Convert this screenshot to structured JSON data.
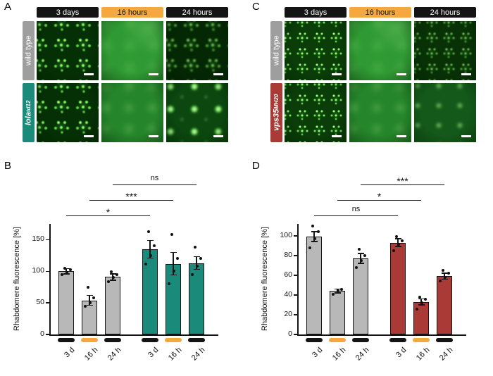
{
  "figure": {
    "panel_a": {
      "letter": "A",
      "columns": [
        "3 days",
        "16 hours",
        "24 hours"
      ],
      "rows": [
        {
          "name": "wild type",
          "sup": ""
        },
        {
          "name": "lola",
          "sup": "td12"
        }
      ]
    },
    "panel_c": {
      "letter": "C",
      "columns": [
        "3 days",
        "16 hours",
        "24 hours"
      ],
      "rows": [
        {
          "name": "wild type",
          "sup": ""
        },
        {
          "name": "vps35",
          "sup": "MH20"
        }
      ]
    },
    "panel_b_letter": "B",
    "panel_d_letter": "D"
  },
  "colors": {
    "black_bar": "#141414",
    "orange_bar": "#f5a83e",
    "gray_label": "#9e9e9e",
    "gray_bar": "#b8b8b8",
    "teal": "#1a8a7a",
    "red": "#a93a35"
  },
  "chart_data": [
    {
      "id": "B",
      "type": "bar",
      "title": "",
      "ylabel": "Rhabdomere fluorescence [%]",
      "categories": [
        "3 d",
        "16 h",
        "24 h",
        "3 d",
        "16 h",
        "24 h"
      ],
      "values": [
        100,
        54,
        91,
        135,
        112,
        113
      ],
      "errors": [
        4,
        8,
        5,
        14,
        18,
        10
      ],
      "points": [
        [
          95,
          98,
          102,
          105
        ],
        [
          45,
          50,
          58,
          75
        ],
        [
          84,
          90,
          95,
          99
        ],
        [
          112,
          125,
          140,
          163
        ],
        [
          80,
          100,
          120,
          158
        ],
        [
          95,
          108,
          120,
          138
        ]
      ],
      "bar_colors": [
        "gray",
        "gray",
        "gray",
        "teal",
        "teal",
        "teal"
      ],
      "tick_markers": [
        "black",
        "orange",
        "black",
        "black",
        "orange",
        "black"
      ],
      "yticks": [
        0,
        50,
        100,
        150
      ],
      "ymax": 175,
      "ylim": [
        0,
        175
      ],
      "grid": false,
      "significance": [
        {
          "a": 0,
          "b": 3,
          "label": "*"
        },
        {
          "a": 1,
          "b": 4,
          "label": "***"
        },
        {
          "a": 2,
          "b": 5,
          "label": "ns"
        }
      ]
    },
    {
      "id": "D",
      "type": "bar",
      "title": "",
      "ylabel": "Rhabdomere fluorescence [%]",
      "categories": [
        "3 d",
        "16 h",
        "24 h",
        "3 d",
        "16 h",
        "24 h"
      ],
      "values": [
        99,
        44,
        77,
        93,
        33,
        59
      ],
      "errors": [
        5,
        2,
        5,
        4,
        3,
        3
      ],
      "points": [
        [
          88,
          97,
          104,
          110
        ],
        [
          41,
          44,
          46
        ],
        [
          68,
          75,
          80,
          86
        ],
        [
          85,
          91,
          95,
          99
        ],
        [
          26,
          32,
          36,
          38
        ],
        [
          54,
          58,
          62,
          65
        ]
      ],
      "bar_colors": [
        "gray",
        "gray",
        "gray",
        "red",
        "red",
        "red"
      ],
      "tick_markers": [
        "black",
        "orange",
        "black",
        "black",
        "orange",
        "black"
      ],
      "yticks": [
        0,
        20,
        40,
        60,
        80,
        100
      ],
      "ymax": 112,
      "ylim": [
        0,
        112
      ],
      "grid": false,
      "significance": [
        {
          "a": 0,
          "b": 3,
          "label": "ns"
        },
        {
          "a": 1,
          "b": 4,
          "label": "*"
        },
        {
          "a": 2,
          "b": 5,
          "label": "***"
        }
      ]
    }
  ]
}
